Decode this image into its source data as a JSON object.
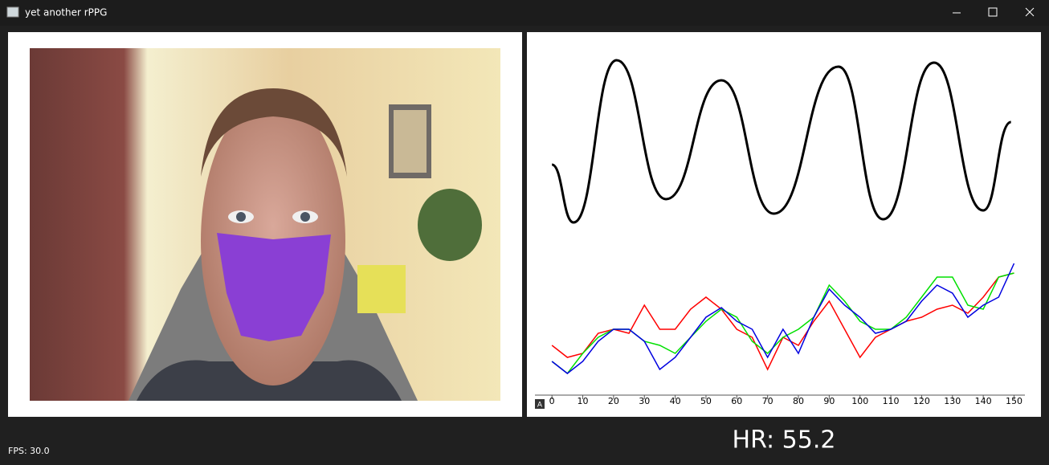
{
  "window": {
    "title": "yet another rPPG"
  },
  "status": {
    "fps": "FPS: 30.0",
    "hr": "HR: 55.2"
  },
  "chart_data": [
    {
      "type": "line",
      "color": "#000000",
      "x": [
        0,
        7,
        21,
        37,
        55,
        72,
        93,
        107.5,
        124,
        140,
        149
      ],
      "values": [
        -0.29,
        -1.01,
        1.01,
        -0.72,
        0.76,
        -0.9,
        0.93,
        -0.97,
        0.98,
        -0.86,
        0.24
      ],
      "xlim": [
        -5,
        153
      ],
      "ylim": [
        -1.2,
        1.2
      ]
    },
    {
      "type": "line",
      "x": [
        0,
        5,
        10,
        15,
        20,
        25,
        30,
        35,
        40,
        45,
        50,
        55,
        60,
        65,
        70,
        75,
        80,
        85,
        90,
        95,
        100,
        105,
        110,
        115,
        120,
        125,
        130,
        135,
        140,
        145,
        150
      ],
      "series": [
        {
          "color": "#ff0000",
          "values": [
            5,
            3.5,
            4,
            6.5,
            7,
            6.5,
            10,
            7,
            7,
            9.5,
            11,
            9.5,
            7,
            6,
            2,
            6,
            5,
            8,
            10.5,
            7,
            3.5,
            6,
            7,
            8,
            8.5,
            9.5,
            10,
            9,
            11,
            13.5,
            14
          ]
        },
        {
          "color": "#00e000",
          "values": [
            3,
            1.5,
            4,
            6,
            7,
            7,
            5.5,
            5,
            4,
            6,
            8,
            9.5,
            8.5,
            5.5,
            4,
            6,
            7,
            8.5,
            12.5,
            10.5,
            8,
            7,
            7,
            8.5,
            11,
            13.5,
            13.5,
            10,
            9.5,
            13.5,
            14
          ]
        },
        {
          "color": "#0000e0",
          "values": [
            3,
            1.5,
            3,
            5.5,
            7,
            7,
            5.5,
            2,
            3.5,
            6,
            8.5,
            9.7,
            8,
            7,
            3.5,
            7,
            4,
            8.5,
            12,
            10,
            8.5,
            6.5,
            7,
            8,
            10.5,
            12.5,
            11.5,
            8.5,
            10,
            11,
            15.2
          ]
        }
      ],
      "xlim": [
        -5,
        153
      ],
      "ylim": [
        0,
        16
      ],
      "xticks": [
        0,
        10,
        20,
        30,
        40,
        50,
        60,
        70,
        80,
        90,
        100,
        110,
        120,
        130,
        140,
        150
      ]
    }
  ]
}
